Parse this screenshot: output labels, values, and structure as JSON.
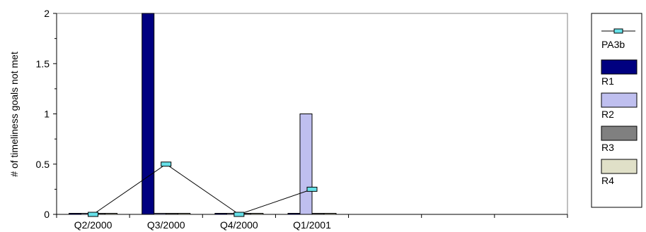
{
  "chart_data": {
    "type": "bar",
    "ylabel": "# of timeliness goals not met",
    "xlabel": "",
    "ylim": [
      0,
      2
    ],
    "yticks": [
      "0",
      "0.5",
      "1",
      "1.5",
      "2"
    ],
    "categories": [
      "Q2/2000",
      "Q3/2000",
      "Q4/2000",
      "Q1/2001",
      "",
      "",
      ""
    ],
    "bar_series": [
      {
        "name": "R1",
        "values": [
          0,
          2,
          0,
          0,
          null,
          null,
          null
        ],
        "color": "#000080"
      },
      {
        "name": "R2",
        "values": [
          0,
          0,
          0,
          1,
          null,
          null,
          null
        ],
        "color": "#BFBFEF"
      },
      {
        "name": "R3",
        "values": [
          0,
          0,
          0,
          0,
          null,
          null,
          null
        ],
        "color": "#808080"
      },
      {
        "name": "R4",
        "values": [
          0,
          0,
          0,
          0,
          null,
          null,
          null
        ],
        "color": "#E0E0C8"
      }
    ],
    "line_series": [
      {
        "name": "PA3b",
        "values": [
          0,
          0.5,
          0,
          0.25,
          null,
          null,
          null
        ],
        "marker_color": "#66E0E8"
      }
    ],
    "legend_position": "right",
    "grid": false
  }
}
